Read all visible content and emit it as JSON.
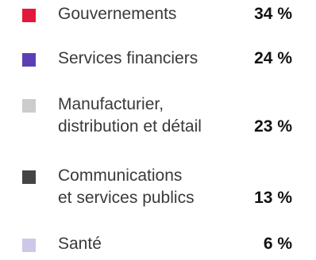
{
  "chart_data": {
    "type": "pie",
    "categories": [
      "Gouvernements",
      "Services financiers",
      "Manufacturier, distribution et détail",
      "Communications et services publics",
      "Santé"
    ],
    "values": [
      34,
      24,
      23,
      13,
      6
    ],
    "value_labels": [
      "34 %",
      "24 %",
      "23 %",
      "13 %",
      "6 %"
    ],
    "legend": {
      "placement": "full",
      "items": [
        {
          "lines": [
            "Gouvernements"
          ],
          "value_label": "34 %",
          "color": "#e4183c"
        },
        {
          "lines": [
            "Services financiers"
          ],
          "value_label": "24 %",
          "color": "#5b3fb5"
        },
        {
          "lines": [
            "Manufacturier,",
            "distribution et détail"
          ],
          "value_label": "23 %",
          "color": "#cccccc"
        },
        {
          "lines": [
            "Communications",
            "et services publics"
          ],
          "value_label": "13 %",
          "color": "#444444"
        },
        {
          "lines": [
            "Santé"
          ],
          "value_label": "6 %",
          "color": "#cdc8e8"
        }
      ]
    }
  }
}
